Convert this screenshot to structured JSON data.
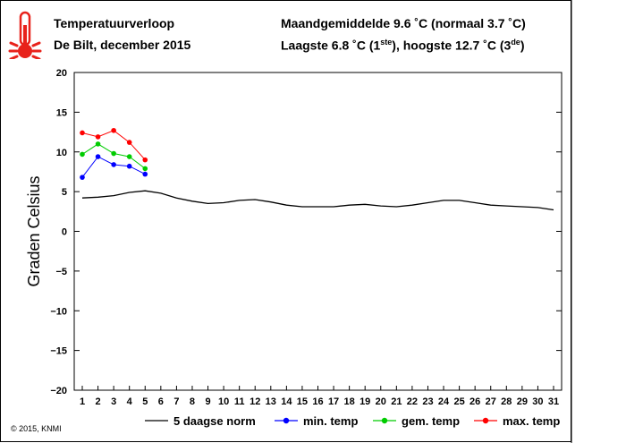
{
  "header": {
    "title": "Temperatuurverloop",
    "subtitle": "De Bilt, december 2015",
    "monthly_avg": "Maandgemiddelde 9.6 ˚C (normaal 3.7 ˚C)",
    "extremes_prefix": "Laagste 6.8 ˚C (1",
    "extremes_sup1": "ste",
    "extremes_mid": "), hoogste 12.7 ˚C (3",
    "extremes_sup2": "de",
    "extremes_suffix": ")"
  },
  "icon": "thermometer-icon",
  "copyright": "© 2015, KNMI",
  "chart_data": {
    "type": "line",
    "ylabel": "Graden Celsius",
    "xlabel": "",
    "ylim": [
      -20,
      20
    ],
    "xlim": [
      1,
      31
    ],
    "yticks": [
      -20,
      -15,
      -10,
      -5,
      0,
      5,
      10,
      15,
      20
    ],
    "ytick_labels": [
      "−20",
      "−15",
      "−10",
      "−5",
      "0",
      "5",
      "10",
      "15",
      "20"
    ],
    "x": [
      1,
      2,
      3,
      4,
      5,
      6,
      7,
      8,
      9,
      10,
      11,
      12,
      13,
      14,
      15,
      16,
      17,
      18,
      19,
      20,
      21,
      22,
      23,
      24,
      25,
      26,
      27,
      28,
      29,
      30,
      31
    ],
    "legend_position": "bottom",
    "series": [
      {
        "name": "5 daagse norm",
        "color": "#000000",
        "markers": false,
        "x": [
          1,
          2,
          3,
          4,
          5,
          6,
          7,
          8,
          9,
          10,
          11,
          12,
          13,
          14,
          15,
          16,
          17,
          18,
          19,
          20,
          21,
          22,
          23,
          24,
          25,
          26,
          27,
          28,
          29,
          30,
          31
        ],
        "values": [
          4.2,
          4.3,
          4.5,
          4.9,
          5.1,
          4.8,
          4.2,
          3.8,
          3.5,
          3.6,
          3.9,
          4.0,
          3.7,
          3.3,
          3.1,
          3.1,
          3.1,
          3.3,
          3.4,
          3.2,
          3.1,
          3.3,
          3.6,
          3.9,
          3.9,
          3.6,
          3.3,
          3.2,
          3.1,
          3.0,
          2.7
        ]
      },
      {
        "name": "min. temp",
        "color": "#0000ff",
        "markers": true,
        "x": [
          1,
          2,
          3,
          4,
          5
        ],
        "values": [
          6.8,
          9.4,
          8.4,
          8.2,
          7.2
        ]
      },
      {
        "name": "gem. temp",
        "color": "#00cc00",
        "markers": true,
        "x": [
          1,
          2,
          3,
          4,
          5
        ],
        "values": [
          9.7,
          11.0,
          9.8,
          9.4,
          7.9
        ]
      },
      {
        "name": "max. temp",
        "color": "#ff0000",
        "markers": true,
        "x": [
          1,
          2,
          3,
          4,
          5
        ],
        "values": [
          12.4,
          11.9,
          12.7,
          11.2,
          9.0
        ]
      }
    ]
  }
}
